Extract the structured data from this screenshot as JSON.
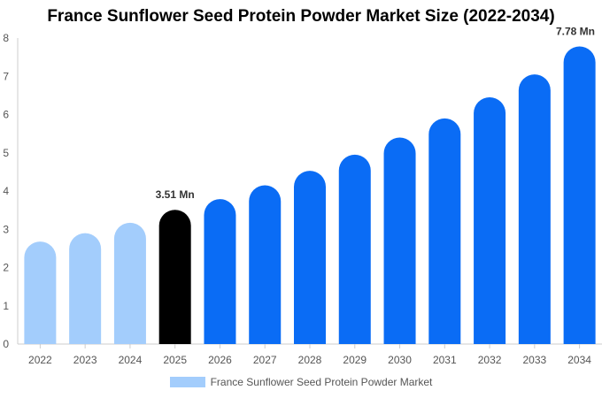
{
  "chart_data": {
    "type": "bar",
    "title": "France Sunflower Seed Protein Powder Market Size (2022-2034)",
    "categories": [
      "2022",
      "2023",
      "2024",
      "2025",
      "2026",
      "2027",
      "2028",
      "2029",
      "2030",
      "2031",
      "2032",
      "2033",
      "2034"
    ],
    "values": [
      2.68,
      2.9,
      3.17,
      3.51,
      3.79,
      4.15,
      4.53,
      4.95,
      5.4,
      5.9,
      6.45,
      7.05,
      7.78
    ],
    "series": [
      {
        "name": "France Sunflower Seed Protein Powder Market",
        "values": [
          2.68,
          2.9,
          3.17,
          3.51,
          3.79,
          4.15,
          4.53,
          4.95,
          5.4,
          5.9,
          6.45,
          7.05,
          7.78
        ]
      }
    ],
    "ylim": [
      0,
      8
    ],
    "yticks": [
      "0",
      "1",
      "2",
      "3",
      "4",
      "5",
      "6",
      "7",
      "8"
    ],
    "data_labels": [
      {
        "index": 3,
        "text": "3.51 Mn"
      },
      {
        "index": 12,
        "text": "7.78 Mn"
      }
    ],
    "bar_colors": [
      "#a3cdfc",
      "#a3cdfc",
      "#a3cdfc",
      "#000000",
      "#0a6cf5",
      "#0a6cf5",
      "#0a6cf5",
      "#0a6cf5",
      "#0a6cf5",
      "#0a6cf5",
      "#0a6cf5",
      "#0a6cf5",
      "#0a6cf5"
    ],
    "legend_color": "#a3cdfc",
    "legend_position": "bottom",
    "grid": false
  }
}
